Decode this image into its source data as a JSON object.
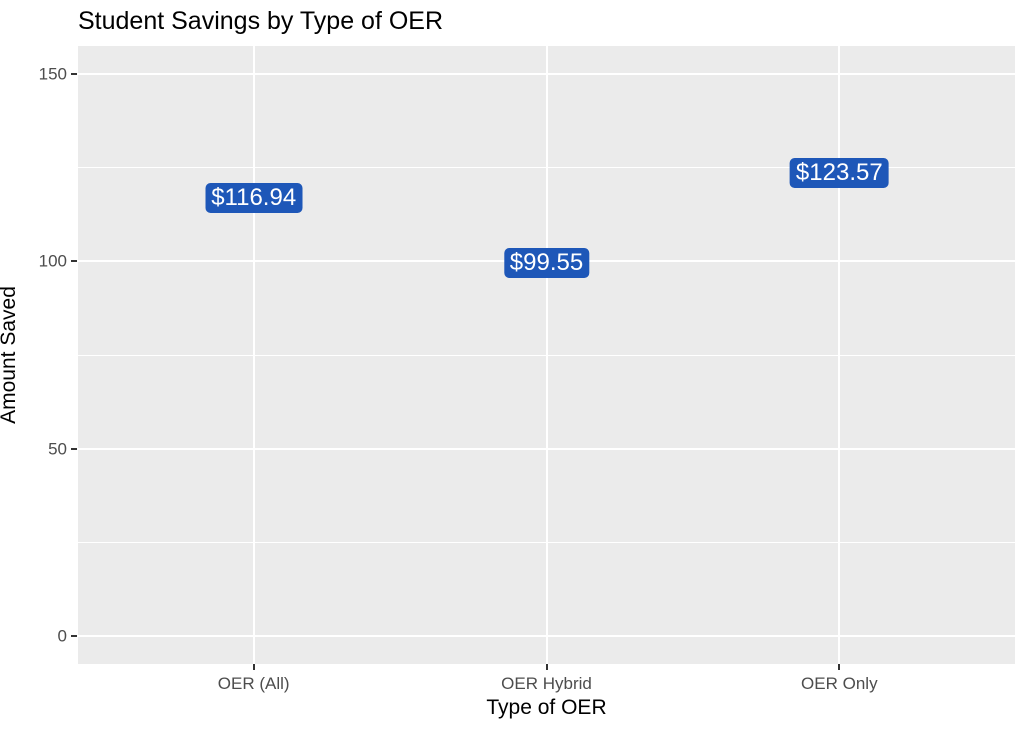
{
  "chart_data": {
    "type": "scatter",
    "variant": "geom_label",
    "title": "Student Savings by Type of OER",
    "xlabel": "Type of OER",
    "ylabel": "Amount Saved",
    "categories": [
      "OER (All)",
      "OER Hybrid",
      "OER Only"
    ],
    "values": [
      116.94,
      99.55,
      123.57
    ],
    "point_labels": [
      "$116.94",
      "$99.55",
      "$123.57"
    ],
    "ylim": [
      0,
      150
    ],
    "yticks": [
      0,
      50,
      100,
      150
    ],
    "ytick_labels": [
      "0",
      "50",
      "100",
      "150"
    ],
    "yticks_minor": [
      25,
      75,
      125
    ],
    "y_expand_frac": 0.05,
    "grid": "horizontal major+minor, vertical major at categories",
    "legend": "none",
    "colors": {
      "panel_bg": "#EBEBEB",
      "gridline": "#FFFFFF",
      "label_fill": "#1E57B8",
      "label_text": "#FFFFFF",
      "tick_text": "#4D4D4D",
      "axis_title_text": "#000000",
      "tick_mark": "#333333"
    }
  }
}
